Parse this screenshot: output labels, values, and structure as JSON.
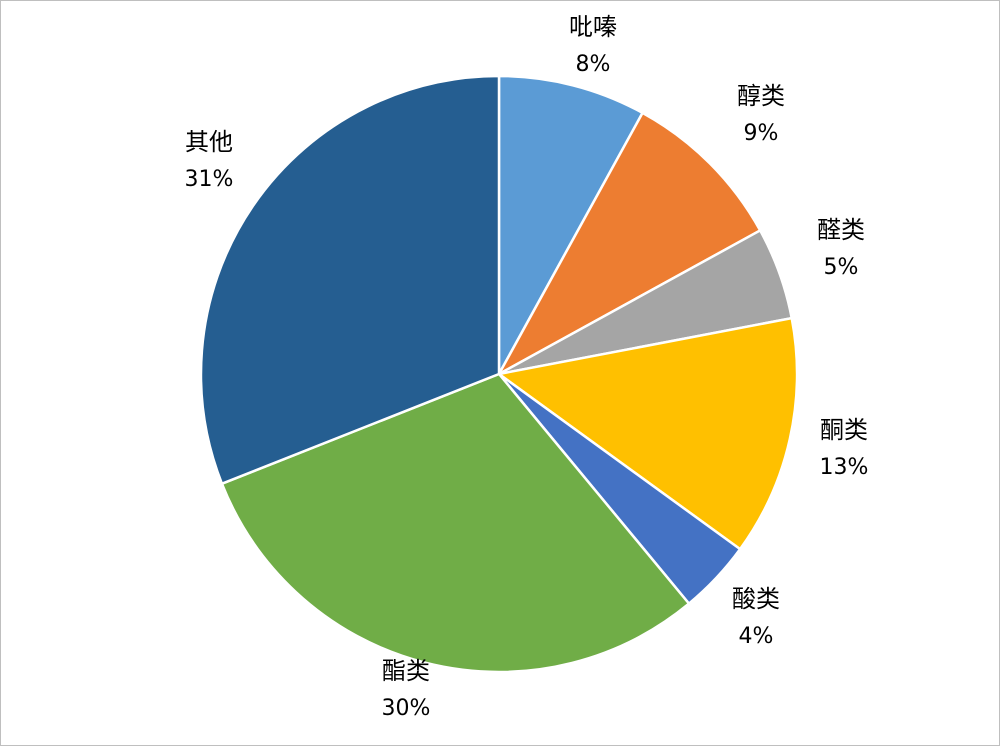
{
  "chart_data": {
    "type": "pie",
    "slices": [
      {
        "label": "吡嗪",
        "value": 8,
        "value_label": "8%",
        "color": "#5b9bd5"
      },
      {
        "label": "醇类",
        "value": 9,
        "value_label": "9%",
        "color": "#ed7d31"
      },
      {
        "label": "醛类",
        "value": 5,
        "value_label": "5%",
        "color": "#a5a5a5"
      },
      {
        "label": "酮类",
        "value": 13,
        "value_label": "13%",
        "color": "#ffc000"
      },
      {
        "label": "酸类",
        "value": 4,
        "value_label": "4%",
        "color": "#4472c4"
      },
      {
        "label": "酯类",
        "value": 30,
        "value_label": "30%",
        "color": "#70ad47"
      },
      {
        "label": "其他",
        "value": 31,
        "value_label": "31%",
        "color": "#255e91"
      }
    ],
    "start_angle": "12 o'clock",
    "direction": "clockwise",
    "legend": "none",
    "data_labels": "outside, category name above percentage"
  }
}
